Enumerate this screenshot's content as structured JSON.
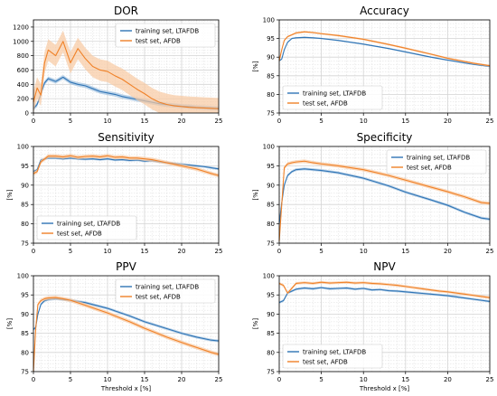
{
  "chart_data": [
    {
      "type": "line",
      "title": "DOR",
      "xlabel": "",
      "ylabel": "",
      "xlim": [
        0,
        25
      ],
      "ylim": [
        0,
        1300
      ],
      "xticks": [
        "0",
        "5",
        "10",
        "15",
        "20",
        "25"
      ],
      "yticks": [
        "0",
        "200",
        "400",
        "600",
        "800",
        "1000",
        "1200"
      ],
      "legend_position": "top-right",
      "grid": true,
      "series": [
        {
          "name": "training set, LTAFDB",
          "x": [
            0,
            0.5,
            1,
            1.5,
            2,
            3,
            4,
            5,
            6,
            7,
            8,
            9,
            10,
            11,
            12,
            13,
            14,
            15,
            16,
            17,
            18,
            19,
            20,
            21,
            22,
            23,
            24,
            25
          ],
          "y": [
            60,
            120,
            260,
            420,
            480,
            440,
            500,
            430,
            400,
            380,
            340,
            300,
            280,
            260,
            230,
            210,
            190,
            170,
            150,
            130,
            115,
            105,
            95,
            90,
            80,
            75,
            70,
            65
          ],
          "band": 30
        },
        {
          "name": "test set, AFDB",
          "x": [
            0,
            0.5,
            1,
            1.5,
            2,
            3,
            4,
            5,
            6,
            7,
            8,
            9,
            10,
            11,
            12,
            13,
            14,
            15,
            16,
            17,
            18,
            19,
            20,
            21,
            22,
            23,
            24,
            25
          ],
          "y": [
            150,
            350,
            250,
            700,
            880,
            800,
            1000,
            700,
            900,
            760,
            650,
            600,
            580,
            520,
            470,
            400,
            330,
            270,
            200,
            150,
            120,
            100,
            90,
            80,
            75,
            70,
            65,
            60
          ],
          "band": 150
        }
      ]
    },
    {
      "type": "line",
      "title": "Accuracy",
      "xlabel": "",
      "ylabel": "[%]",
      "xlim": [
        0,
        25
      ],
      "ylim": [
        75,
        100
      ],
      "xticks": [
        "0",
        "5",
        "10",
        "15",
        "20",
        "25"
      ],
      "yticks": [
        "75",
        "80",
        "85",
        "90",
        "95",
        "100"
      ],
      "legend_position": "bottom-left",
      "grid": true,
      "series": [
        {
          "name": "training set, LTAFDB",
          "x": [
            0,
            0.3,
            0.6,
            1,
            1.5,
            2,
            3,
            4,
            5,
            7,
            10,
            13,
            15,
            18,
            20,
            23,
            25
          ],
          "y": [
            89,
            89.5,
            92,
            94,
            95,
            95.2,
            95.3,
            95.2,
            95,
            94.5,
            93.5,
            92.3,
            91.4,
            90,
            89.2,
            88.1,
            87.5
          ],
          "band": 0.2
        },
        {
          "name": "test set, AFDB",
          "x": [
            0,
            0.3,
            0.6,
            1,
            1.5,
            2,
            3,
            4,
            5,
            7,
            10,
            13,
            15,
            18,
            20,
            23,
            25
          ],
          "y": [
            89,
            92,
            94.5,
            95.5,
            96,
            96.5,
            96.8,
            96.6,
            96.3,
            95.8,
            94.8,
            93.4,
            92.4,
            90.8,
            89.7,
            88.4,
            87.7
          ],
          "band": 0.25
        }
      ]
    },
    {
      "type": "line",
      "title": "Sensitivity",
      "xlabel": "",
      "ylabel": "[%]",
      "xlim": [
        0,
        25
      ],
      "ylim": [
        75,
        100
      ],
      "xticks": [
        "0",
        "5",
        "10",
        "15",
        "20",
        "25"
      ],
      "yticks": [
        "75",
        "80",
        "85",
        "90",
        "95",
        "100"
      ],
      "legend_position": "bottom-left",
      "grid": true,
      "series": [
        {
          "name": "training set, LTAFDB",
          "x": [
            0,
            0.5,
            1,
            2,
            3,
            4,
            5,
            6,
            7,
            8,
            9,
            10,
            11,
            12,
            13,
            14,
            15,
            16,
            17,
            18,
            19,
            20,
            21,
            22,
            23,
            24,
            25
          ],
          "y": [
            93.5,
            94,
            96.5,
            97,
            97,
            96.8,
            97,
            96.8,
            96.7,
            96.8,
            96.6,
            96.8,
            96.5,
            96.6,
            96.4,
            96.5,
            96.2,
            96.3,
            96,
            95.8,
            95.6,
            95.4,
            95.2,
            95,
            94.8,
            94.5,
            94.2
          ],
          "band": 0.3
        },
        {
          "name": "test set, AFDB",
          "x": [
            0,
            0.5,
            1,
            2,
            3,
            4,
            5,
            6,
            7,
            8,
            9,
            10,
            11,
            12,
            13,
            14,
            15,
            16,
            17,
            18,
            19,
            20,
            21,
            22,
            23,
            24,
            25
          ],
          "y": [
            93,
            93.5,
            96,
            97.5,
            97.5,
            97.3,
            97.6,
            97.2,
            97.4,
            97.5,
            97.3,
            97.6,
            97.2,
            97.3,
            97,
            97,
            96.8,
            96.6,
            96.2,
            95.8,
            95.4,
            95,
            94.6,
            94.2,
            93.6,
            93,
            92.5
          ],
          "band": 0.5
        }
      ]
    },
    {
      "type": "line",
      "title": "Specificity",
      "xlabel": "",
      "ylabel": "[%]",
      "xlim": [
        0,
        25
      ],
      "ylim": [
        75,
        100
      ],
      "xticks": [
        "0",
        "5",
        "10",
        "15",
        "20",
        "25"
      ],
      "yticks": [
        "75",
        "80",
        "85",
        "90",
        "95",
        "100"
      ],
      "legend_position": "top-right",
      "grid": true,
      "series": [
        {
          "name": "training set, LTAFDB",
          "x": [
            0,
            0.3,
            0.6,
            1,
            1.5,
            2,
            3,
            4,
            5,
            7,
            10,
            13,
            15,
            18,
            20,
            22,
            24,
            25
          ],
          "y": [
            80,
            85.5,
            90,
            92.5,
            93.5,
            94,
            94.2,
            94,
            93.8,
            93.2,
            91.8,
            89.8,
            88.2,
            86.2,
            84.8,
            83,
            81.5,
            81.2
          ],
          "band": 0.35
        },
        {
          "name": "test set, AFDB",
          "x": [
            0,
            0.3,
            0.6,
            1,
            1.5,
            2,
            3,
            4,
            5,
            7,
            10,
            13,
            15,
            18,
            20,
            22,
            24,
            25
          ],
          "y": [
            75.5,
            85,
            94.5,
            95.5,
            95.8,
            96,
            96.2,
            95.8,
            95.5,
            95,
            94,
            92.5,
            91.3,
            89.5,
            88.3,
            87,
            85.5,
            85.3
          ],
          "band": 0.45
        }
      ]
    },
    {
      "type": "line",
      "title": "PPV",
      "xlabel": "Threshold x [%]",
      "ylabel": "[%]",
      "xlim": [
        0,
        25
      ],
      "ylim": [
        75,
        100
      ],
      "xticks": [
        "0",
        "5",
        "10",
        "15",
        "20",
        "25"
      ],
      "yticks": [
        "75",
        "80",
        "85",
        "90",
        "95",
        "100"
      ],
      "legend_position": "top-right",
      "grid": true,
      "series": [
        {
          "name": "training set, LTAFDB",
          "x": [
            0,
            0.3,
            0.6,
            1,
            1.5,
            2,
            3,
            4,
            5,
            7,
            10,
            13,
            15,
            18,
            20,
            22,
            24,
            25
          ],
          "y": [
            86,
            86.5,
            90,
            92.5,
            93.5,
            93.8,
            94,
            93.8,
            93.6,
            93,
            91.5,
            89.5,
            88,
            86.2,
            85,
            84,
            83.2,
            83
          ],
          "band": 0.35
        },
        {
          "name": "test set, AFDB",
          "x": [
            0,
            0.3,
            0.6,
            1,
            1.5,
            2,
            3,
            4,
            5,
            7,
            10,
            13,
            15,
            18,
            20,
            22,
            24,
            25
          ],
          "y": [
            75,
            86,
            92.5,
            93.5,
            94,
            94.2,
            94.3,
            94,
            93.6,
            92.3,
            90.3,
            88,
            86.3,
            84,
            82.6,
            81.3,
            80,
            79.5
          ],
          "band": 0.5
        }
      ]
    },
    {
      "type": "line",
      "title": "NPV",
      "xlabel": "Threshold x [%]",
      "ylabel": "[%]",
      "xlim": [
        0,
        25
      ],
      "ylim": [
        75,
        100
      ],
      "xticks": [
        "0",
        "5",
        "10",
        "15",
        "20",
        "25"
      ],
      "yticks": [
        "75",
        "80",
        "85",
        "90",
        "95",
        "100"
      ],
      "legend_position": "bottom-left",
      "grid": true,
      "series": [
        {
          "name": "training set, LTAFDB",
          "x": [
            0,
            0.5,
            1,
            2,
            3,
            4,
            5,
            6,
            7,
            8,
            9,
            10,
            11,
            12,
            13,
            14,
            15,
            16,
            17,
            18,
            19,
            20,
            21,
            22,
            23,
            24,
            25
          ],
          "y": [
            93,
            93.5,
            95.5,
            96.5,
            96.8,
            96.6,
            96.9,
            96.6,
            96.7,
            96.8,
            96.5,
            96.7,
            96.3,
            96.4,
            96.1,
            96,
            95.8,
            95.6,
            95.4,
            95.2,
            95,
            94.8,
            94.5,
            94.2,
            93.9,
            93.6,
            93.3
          ],
          "band": 0.3
        },
        {
          "name": "test set, AFDB",
          "x": [
            0,
            0.5,
            1,
            2,
            3,
            4,
            5,
            6,
            7,
            8,
            9,
            10,
            11,
            12,
            13,
            14,
            15,
            16,
            17,
            18,
            19,
            20,
            21,
            22,
            23,
            24,
            25
          ],
          "y": [
            98,
            97.5,
            95.5,
            98,
            98.2,
            98,
            98.3,
            98.1,
            98.2,
            98.3,
            98.1,
            98.2,
            98,
            97.9,
            97.7,
            97.5,
            97.2,
            96.9,
            96.6,
            96.3,
            96,
            95.8,
            95.5,
            95.2,
            94.9,
            94.6,
            94.3
          ],
          "band": 0.35
        }
      ]
    }
  ],
  "colors": {
    "training": "#2f74b5",
    "training_band": "#9ec0e0",
    "test": "#f08127",
    "test_band": "#f8c9a1",
    "grid": "#d4d4d4",
    "axis": "#000000"
  }
}
